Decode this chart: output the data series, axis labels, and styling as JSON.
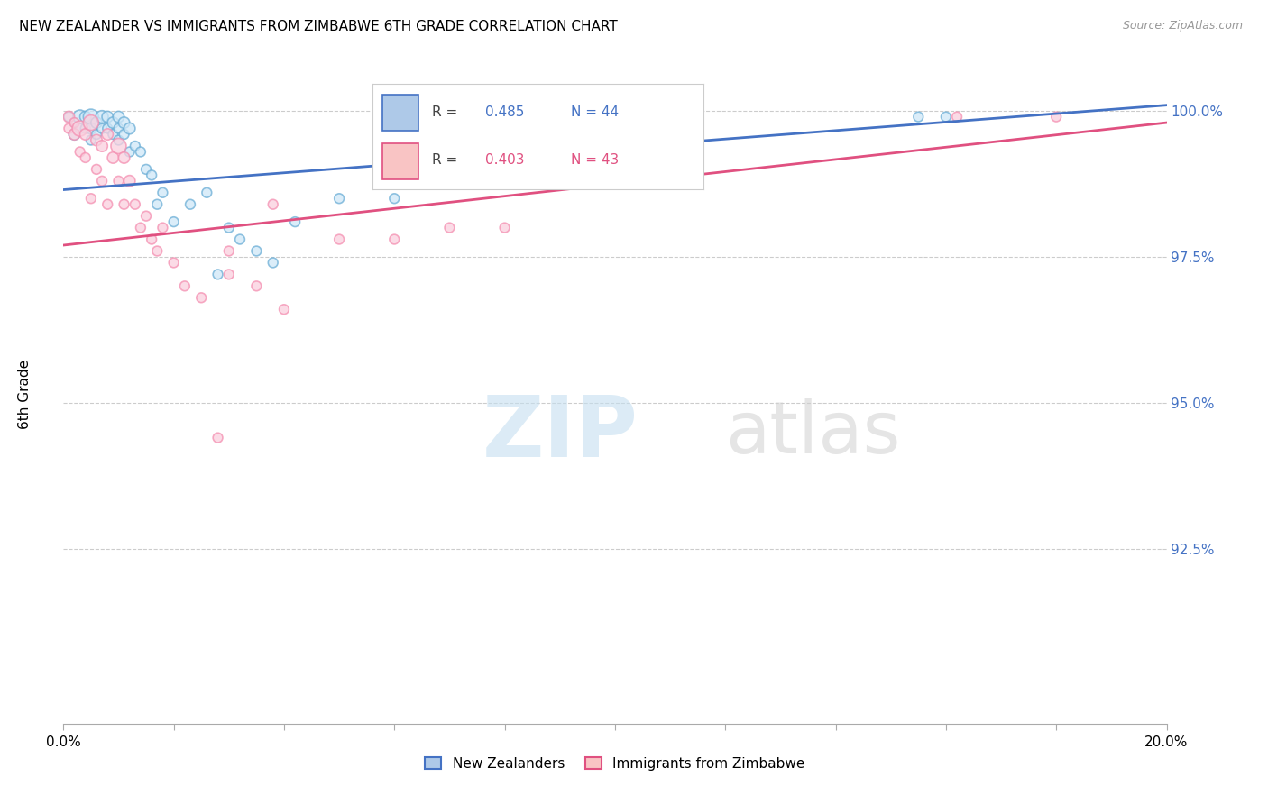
{
  "title": "NEW ZEALANDER VS IMMIGRANTS FROM ZIMBABWE 6TH GRADE CORRELATION CHART",
  "source": "Source: ZipAtlas.com",
  "ylabel": "6th Grade",
  "R1": 0.485,
  "N1": 44,
  "R2": 0.403,
  "N2": 43,
  "color_blue": "#6baed6",
  "color_blue_line": "#4472c4",
  "color_pink": "#f48fb1",
  "color_pink_line": "#e05080",
  "x_min": 0.0,
  "x_max": 0.2,
  "y_min": 0.895,
  "y_max": 1.008,
  "ytick_values": [
    1.0,
    0.975,
    0.95,
    0.925
  ],
  "ytick_labels": [
    "100.0%",
    "97.5%",
    "95.0%",
    "92.5%"
  ],
  "legend_label1": "New Zealanders",
  "legend_label2": "Immigrants from Zimbabwe",
  "nz_x": [
    0.001,
    0.002,
    0.002,
    0.003,
    0.003,
    0.004,
    0.004,
    0.005,
    0.005,
    0.005,
    0.006,
    0.006,
    0.007,
    0.007,
    0.008,
    0.008,
    0.009,
    0.009,
    0.01,
    0.01,
    0.01,
    0.011,
    0.011,
    0.012,
    0.012,
    0.013,
    0.014,
    0.015,
    0.016,
    0.017,
    0.018,
    0.02,
    0.023,
    0.026,
    0.03,
    0.035,
    0.042,
    0.05,
    0.155,
    0.16,
    0.028,
    0.032,
    0.038,
    0.06
  ],
  "nz_y": [
    0.999,
    0.998,
    0.996,
    0.999,
    0.997,
    0.999,
    0.997,
    0.999,
    0.997,
    0.995,
    0.998,
    0.996,
    0.999,
    0.997,
    0.999,
    0.997,
    0.998,
    0.996,
    0.999,
    0.997,
    0.995,
    0.998,
    0.996,
    0.997,
    0.993,
    0.994,
    0.993,
    0.99,
    0.989,
    0.984,
    0.986,
    0.981,
    0.984,
    0.986,
    0.98,
    0.976,
    0.981,
    0.985,
    0.999,
    0.999,
    0.972,
    0.978,
    0.974,
    0.985
  ],
  "nz_size": [
    60,
    60,
    80,
    120,
    60,
    80,
    60,
    150,
    80,
    60,
    80,
    60,
    100,
    60,
    80,
    60,
    80,
    60,
    80,
    60,
    60,
    80,
    60,
    80,
    60,
    60,
    60,
    60,
    60,
    60,
    60,
    60,
    60,
    60,
    60,
    60,
    60,
    60,
    60,
    60,
    60,
    60,
    60,
    60
  ],
  "zim_x": [
    0.001,
    0.001,
    0.002,
    0.002,
    0.003,
    0.003,
    0.004,
    0.004,
    0.005,
    0.005,
    0.006,
    0.006,
    0.007,
    0.007,
    0.008,
    0.008,
    0.009,
    0.01,
    0.01,
    0.011,
    0.011,
    0.012,
    0.013,
    0.014,
    0.015,
    0.016,
    0.017,
    0.018,
    0.02,
    0.022,
    0.025,
    0.03,
    0.035,
    0.04,
    0.03,
    0.038,
    0.162,
    0.18,
    0.06,
    0.07,
    0.05,
    0.08,
    0.028
  ],
  "zim_y": [
    0.999,
    0.997,
    0.998,
    0.996,
    0.997,
    0.993,
    0.996,
    0.992,
    0.998,
    0.985,
    0.995,
    0.99,
    0.994,
    0.988,
    0.996,
    0.984,
    0.992,
    0.994,
    0.988,
    0.992,
    0.984,
    0.988,
    0.984,
    0.98,
    0.982,
    0.978,
    0.976,
    0.98,
    0.974,
    0.97,
    0.968,
    0.972,
    0.97,
    0.966,
    0.976,
    0.984,
    0.999,
    0.999,
    0.978,
    0.98,
    0.978,
    0.98,
    0.944
  ],
  "zim_size": [
    80,
    60,
    60,
    80,
    150,
    60,
    80,
    60,
    150,
    60,
    80,
    60,
    80,
    60,
    80,
    60,
    80,
    150,
    60,
    80,
    60,
    80,
    60,
    60,
    60,
    60,
    60,
    60,
    60,
    60,
    60,
    60,
    60,
    60,
    60,
    60,
    60,
    60,
    60,
    60,
    60,
    60,
    60
  ]
}
